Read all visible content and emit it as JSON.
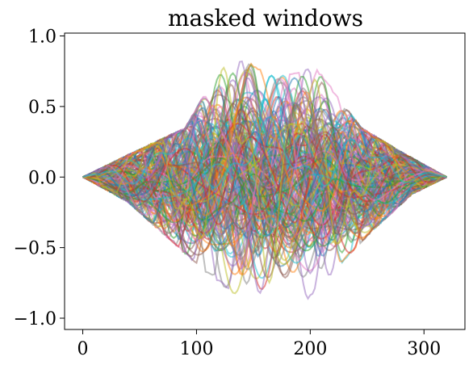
{
  "chart_data": {
    "type": "line",
    "title": "masked windows",
    "xlabel": "",
    "ylabel": "",
    "xlim": [
      -16,
      336
    ],
    "ylim": [
      -1.08,
      1.02
    ],
    "x_ticks": [
      0,
      100,
      200,
      300
    ],
    "x_tick_labels": [
      "0",
      "100",
      "200",
      "300"
    ],
    "y_ticks": [
      1.0,
      0.5,
      0.0,
      -0.5,
      -1.0
    ],
    "y_tick_labels": [
      "1.0",
      "0.5",
      "0.0",
      "−0.5",
      "−1.0"
    ],
    "grid": false,
    "legend": false,
    "x_range": [
      0,
      320
    ],
    "series_count": 180,
    "series_profile": "overlapping oscillating curves inside a bell-shaped envelope; near 0 at both ends",
    "envelope": {
      "upper": [
        {
          "x": 0,
          "y": 0.0
        },
        {
          "x": 40,
          "y": 0.16
        },
        {
          "x": 90,
          "y": 0.35
        },
        {
          "x": 130,
          "y": 0.91
        },
        {
          "x": 165,
          "y": 0.72
        },
        {
          "x": 205,
          "y": 0.78
        },
        {
          "x": 245,
          "y": 0.35
        },
        {
          "x": 280,
          "y": 0.18
        },
        {
          "x": 320,
          "y": 0.0
        }
      ],
      "lower": [
        {
          "x": 0,
          "y": 0.0
        },
        {
          "x": 40,
          "y": -0.18
        },
        {
          "x": 100,
          "y": -0.62
        },
        {
          "x": 140,
          "y": -0.88
        },
        {
          "x": 185,
          "y": -0.97
        },
        {
          "x": 215,
          "y": -0.72
        },
        {
          "x": 255,
          "y": -0.38
        },
        {
          "x": 290,
          "y": -0.12
        },
        {
          "x": 320,
          "y": 0.0
        }
      ]
    },
    "colors": [
      "#1f77b4",
      "#ff7f0e",
      "#2ca02c",
      "#d62728",
      "#9467bd",
      "#8c564b",
      "#e377c2",
      "#7f7f7f",
      "#bcbd22",
      "#17becf"
    ]
  }
}
